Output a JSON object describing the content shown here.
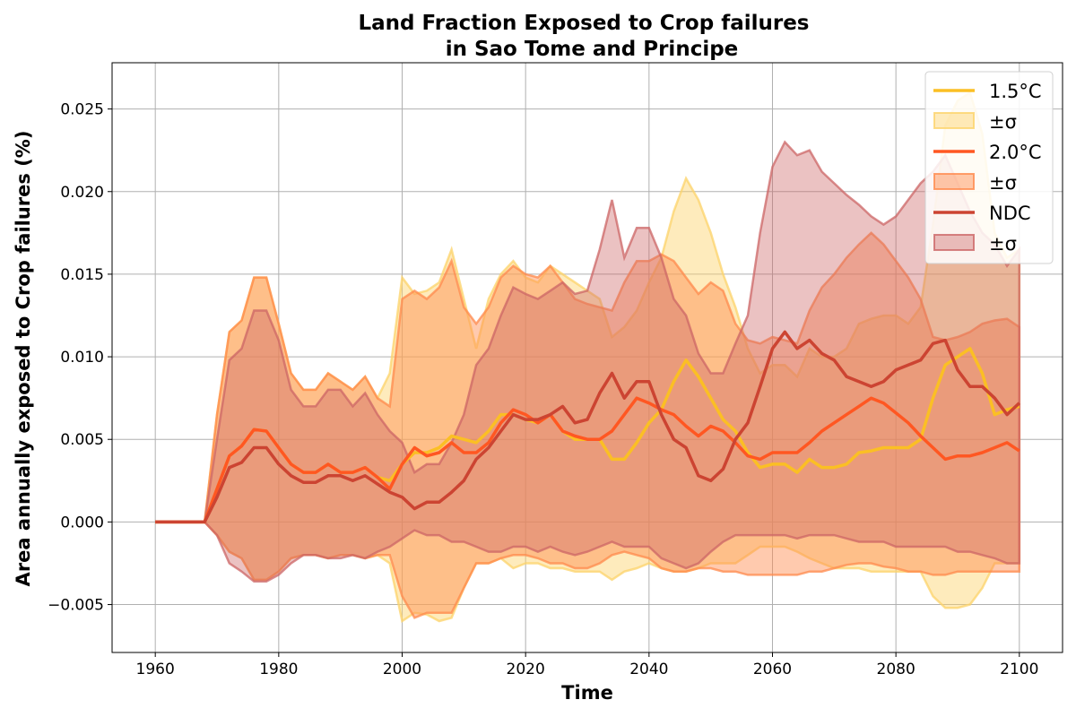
{
  "chart_data": {
    "type": "line",
    "title_line1": "Land Fraction Exposed to Crop failures",
    "title_line2": "in Sao Tome and Principe",
    "xlabel": "Time",
    "ylabel": "Area annually exposed to Crop failures (%)",
    "xlim": [
      1953,
      2107
    ],
    "ylim": [
      -0.0079,
      0.0278
    ],
    "x_ticks": [
      1960,
      1980,
      2000,
      2020,
      2040,
      2060,
      2080,
      2100
    ],
    "y_ticks": [
      -0.005,
      0.0,
      0.005,
      0.01,
      0.015,
      0.02,
      0.025
    ],
    "y_tick_labels": [
      "−0.005",
      "0.000",
      "0.005",
      "0.010",
      "0.015",
      "0.020",
      "0.025"
    ],
    "grid": true,
    "legend_position": "top-right",
    "x": [
      1960,
      1968,
      1970,
      1972,
      1974,
      1976,
      1978,
      1980,
      1982,
      1984,
      1986,
      1988,
      1990,
      1992,
      1994,
      1996,
      1998,
      2000,
      2002,
      2004,
      2006,
      2008,
      2010,
      2012,
      2014,
      2016,
      2018,
      2020,
      2022,
      2024,
      2026,
      2028,
      2030,
      2032,
      2034,
      2036,
      2038,
      2040,
      2042,
      2044,
      2046,
      2048,
      2050,
      2052,
      2054,
      2056,
      2058,
      2060,
      2062,
      2064,
      2066,
      2068,
      2070,
      2072,
      2074,
      2076,
      2078,
      2080,
      2082,
      2084,
      2086,
      2088,
      2090,
      2092,
      2094,
      2096,
      2098,
      2100
    ],
    "series": [
      {
        "name": "1.5°C",
        "band_label": "±σ",
        "color": "#fbbf24",
        "band_color": "#fcd36a",
        "band_opacity": 0.45,
        "mean": [
          0,
          0,
          0.002,
          0.004,
          0.0046,
          0.0056,
          0.0055,
          0.0045,
          0.0035,
          0.003,
          0.003,
          0.0035,
          0.003,
          0.003,
          0.0033,
          0.0027,
          0.0025,
          0.0035,
          0.0042,
          0.0042,
          0.0045,
          0.0052,
          0.005,
          0.0048,
          0.0055,
          0.0065,
          0.0065,
          0.0062,
          0.006,
          0.0065,
          0.0055,
          0.005,
          0.005,
          0.005,
          0.0038,
          0.0038,
          0.0048,
          0.006,
          0.0068,
          0.0085,
          0.0098,
          0.0088,
          0.0075,
          0.0062,
          0.0055,
          0.0042,
          0.0033,
          0.0035,
          0.0035,
          0.003,
          0.0038,
          0.0033,
          0.0033,
          0.0035,
          0.0042,
          0.0043,
          0.0045,
          0.0045,
          0.0045,
          0.005,
          0.0075,
          0.0095,
          0.01,
          0.0105,
          0.009,
          0.0065,
          0.0068,
          0.007
        ],
        "upper": [
          0,
          0,
          0.0065,
          0.0115,
          0.0122,
          0.0148,
          0.0148,
          0.012,
          0.009,
          0.008,
          0.008,
          0.009,
          0.0085,
          0.008,
          0.0088,
          0.0075,
          0.009,
          0.0148,
          0.0138,
          0.014,
          0.0145,
          0.0165,
          0.0135,
          0.0105,
          0.0135,
          0.015,
          0.0158,
          0.0148,
          0.0145,
          0.0155,
          0.015,
          0.0145,
          0.014,
          0.0135,
          0.0112,
          0.0118,
          0.0128,
          0.0145,
          0.016,
          0.0188,
          0.0208,
          0.0195,
          0.0175,
          0.015,
          0.013,
          0.0105,
          0.009,
          0.0095,
          0.0095,
          0.0088,
          0.0105,
          0.01,
          0.01,
          0.0105,
          0.012,
          0.0123,
          0.0125,
          0.0125,
          0.012,
          0.013,
          0.018,
          0.024,
          0.0255,
          0.026,
          0.0235,
          0.0175,
          0.016,
          0.0165
        ],
        "lower": [
          0,
          0,
          -0.0008,
          -0.0018,
          -0.0022,
          -0.0035,
          -0.0035,
          -0.003,
          -0.0022,
          -0.002,
          -0.002,
          -0.0022,
          -0.002,
          -0.002,
          -0.0022,
          -0.002,
          -0.0025,
          -0.006,
          -0.0055,
          -0.0056,
          -0.006,
          -0.0058,
          -0.004,
          -0.0025,
          -0.0025,
          -0.0022,
          -0.0028,
          -0.0025,
          -0.0025,
          -0.0028,
          -0.0028,
          -0.003,
          -0.003,
          -0.003,
          -0.0035,
          -0.003,
          -0.0028,
          -0.0025,
          -0.0028,
          -0.003,
          -0.003,
          -0.0028,
          -0.0025,
          -0.0025,
          -0.0025,
          -0.002,
          -0.0015,
          -0.0015,
          -0.0015,
          -0.0018,
          -0.0022,
          -0.0025,
          -0.0028,
          -0.0028,
          -0.0028,
          -0.003,
          -0.003,
          -0.003,
          -0.003,
          -0.003,
          -0.0045,
          -0.0052,
          -0.0052,
          -0.005,
          -0.004,
          -0.0025,
          -0.0025,
          -0.0025
        ]
      },
      {
        "name": "2.0°C",
        "band_label": "±σ",
        "color": "#ff5722",
        "band_color": "#ff8a4c",
        "band_opacity": 0.45,
        "mean": [
          0,
          0,
          0.002,
          0.004,
          0.0046,
          0.0056,
          0.0055,
          0.0045,
          0.0035,
          0.003,
          0.003,
          0.0035,
          0.003,
          0.003,
          0.0033,
          0.0027,
          0.002,
          0.0035,
          0.0045,
          0.004,
          0.0042,
          0.0048,
          0.0042,
          0.0042,
          0.0048,
          0.006,
          0.0068,
          0.0065,
          0.006,
          0.0065,
          0.0055,
          0.0052,
          0.005,
          0.005,
          0.0055,
          0.0065,
          0.0075,
          0.0072,
          0.0068,
          0.0065,
          0.0058,
          0.0052,
          0.0058,
          0.0055,
          0.0048,
          0.004,
          0.0038,
          0.0042,
          0.0042,
          0.0042,
          0.0048,
          0.0055,
          0.006,
          0.0065,
          0.007,
          0.0075,
          0.0072,
          0.0066,
          0.006,
          0.0052,
          0.0045,
          0.0038,
          0.004,
          0.004,
          0.0042,
          0.0045,
          0.0048,
          0.0043
        ],
        "upper": [
          0,
          0,
          0.0065,
          0.0115,
          0.0122,
          0.0148,
          0.0148,
          0.012,
          0.009,
          0.008,
          0.008,
          0.009,
          0.0085,
          0.008,
          0.0088,
          0.0075,
          0.007,
          0.0135,
          0.014,
          0.0135,
          0.0142,
          0.0158,
          0.013,
          0.012,
          0.013,
          0.0148,
          0.0155,
          0.015,
          0.0148,
          0.0155,
          0.0145,
          0.0135,
          0.0132,
          0.013,
          0.0128,
          0.0145,
          0.0158,
          0.0158,
          0.0162,
          0.0158,
          0.0148,
          0.0138,
          0.0145,
          0.014,
          0.012,
          0.011,
          0.0108,
          0.0112,
          0.011,
          0.0108,
          0.0128,
          0.0142,
          0.015,
          0.016,
          0.0168,
          0.0175,
          0.0168,
          0.0158,
          0.0148,
          0.0135,
          0.0112,
          0.011,
          0.0112,
          0.0115,
          0.012,
          0.0122,
          0.0123,
          0.0118
        ],
        "lower": [
          0,
          0,
          -0.0008,
          -0.0018,
          -0.0022,
          -0.0035,
          -0.0035,
          -0.003,
          -0.0022,
          -0.002,
          -0.002,
          -0.0022,
          -0.002,
          -0.002,
          -0.0022,
          -0.002,
          -0.002,
          -0.0045,
          -0.0058,
          -0.0055,
          -0.0055,
          -0.0055,
          -0.004,
          -0.0025,
          -0.0025,
          -0.0022,
          -0.002,
          -0.002,
          -0.0022,
          -0.0025,
          -0.0025,
          -0.0028,
          -0.0028,
          -0.0025,
          -0.002,
          -0.0018,
          -0.002,
          -0.0022,
          -0.0028,
          -0.003,
          -0.003,
          -0.0028,
          -0.0028,
          -0.003,
          -0.003,
          -0.0032,
          -0.0032,
          -0.0032,
          -0.0032,
          -0.0032,
          -0.003,
          -0.003,
          -0.0028,
          -0.0026,
          -0.0025,
          -0.0025,
          -0.0027,
          -0.0028,
          -0.003,
          -0.003,
          -0.0032,
          -0.0032,
          -0.003,
          -0.003,
          -0.003,
          -0.003,
          -0.003,
          -0.003
        ]
      },
      {
        "name": "NDC",
        "band_label": "±σ",
        "color": "#cc4432",
        "band_color": "#cc6666",
        "band_opacity": 0.4,
        "mean": [
          0,
          0,
          0.0015,
          0.0033,
          0.0036,
          0.0045,
          0.0045,
          0.0035,
          0.0028,
          0.0024,
          0.0024,
          0.0028,
          0.0028,
          0.0025,
          0.0028,
          0.0023,
          0.0018,
          0.0015,
          0.0008,
          0.0012,
          0.0012,
          0.0018,
          0.0025,
          0.0038,
          0.0045,
          0.0055,
          0.0065,
          0.0062,
          0.0062,
          0.0065,
          0.007,
          0.006,
          0.0062,
          0.0078,
          0.009,
          0.0075,
          0.0085,
          0.0085,
          0.0065,
          0.005,
          0.0045,
          0.0028,
          0.0025,
          0.0032,
          0.005,
          0.006,
          0.0082,
          0.0105,
          0.0115,
          0.0105,
          0.011,
          0.0102,
          0.0098,
          0.0088,
          0.0085,
          0.0082,
          0.0085,
          0.0092,
          0.0095,
          0.0098,
          0.0108,
          0.011,
          0.0092,
          0.0082,
          0.0082,
          0.0075,
          0.0065,
          0.0072
        ],
        "upper": [
          0,
          0,
          0.005,
          0.0098,
          0.0105,
          0.0128,
          0.0128,
          0.011,
          0.008,
          0.007,
          0.007,
          0.008,
          0.008,
          0.007,
          0.0078,
          0.0065,
          0.0055,
          0.0048,
          0.003,
          0.0035,
          0.0035,
          0.0048,
          0.0065,
          0.0095,
          0.0105,
          0.0125,
          0.0142,
          0.0138,
          0.0135,
          0.014,
          0.0145,
          0.0138,
          0.014,
          0.0165,
          0.0195,
          0.016,
          0.0178,
          0.0178,
          0.016,
          0.0135,
          0.0125,
          0.0102,
          0.009,
          0.009,
          0.0108,
          0.0125,
          0.0175,
          0.0215,
          0.023,
          0.0222,
          0.0225,
          0.0212,
          0.0205,
          0.0198,
          0.0192,
          0.0185,
          0.018,
          0.0185,
          0.0195,
          0.0205,
          0.0212,
          0.0222,
          0.0205,
          0.0188,
          0.0175,
          0.0168,
          0.0155,
          0.0165
        ],
        "lower": [
          0,
          0,
          -0.0008,
          -0.0025,
          -0.003,
          -0.0036,
          -0.0036,
          -0.0032,
          -0.0025,
          -0.002,
          -0.002,
          -0.0022,
          -0.0022,
          -0.002,
          -0.0022,
          -0.0018,
          -0.0015,
          -0.001,
          -0.0005,
          -0.0008,
          -0.0008,
          -0.0012,
          -0.0012,
          -0.0015,
          -0.0018,
          -0.0018,
          -0.0015,
          -0.0015,
          -0.0018,
          -0.0015,
          -0.0018,
          -0.002,
          -0.0018,
          -0.0015,
          -0.0012,
          -0.0015,
          -0.0015,
          -0.0015,
          -0.0022,
          -0.0025,
          -0.0028,
          -0.0025,
          -0.0018,
          -0.0012,
          -0.0008,
          -0.0008,
          -0.0008,
          -0.0008,
          -0.0008,
          -0.001,
          -0.0008,
          -0.0008,
          -0.0008,
          -0.001,
          -0.0012,
          -0.0012,
          -0.0012,
          -0.0015,
          -0.0015,
          -0.0015,
          -0.0015,
          -0.0015,
          -0.0018,
          -0.0018,
          -0.002,
          -0.0022,
          -0.0025,
          -0.0025
        ]
      }
    ]
  }
}
